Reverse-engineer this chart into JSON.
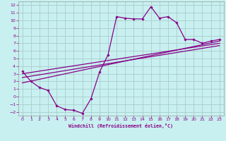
{
  "xlabel": "Windchill (Refroidissement éolien,°C)",
  "bg_color": "#c8f0f0",
  "grid_color": "#aacccc",
  "line_color": "#880088",
  "xlim": [
    -0.5,
    23.5
  ],
  "ylim": [
    -2.5,
    12.5
  ],
  "xticks": [
    0,
    1,
    2,
    3,
    4,
    5,
    6,
    7,
    8,
    9,
    10,
    11,
    12,
    13,
    14,
    15,
    16,
    17,
    18,
    19,
    20,
    21,
    22,
    23
  ],
  "yticks": [
    -2,
    -1,
    0,
    1,
    2,
    3,
    4,
    5,
    6,
    7,
    8,
    9,
    10,
    11,
    12
  ],
  "line1_x": [
    0,
    1,
    2,
    3,
    4,
    5,
    6,
    7,
    8,
    9,
    10,
    11,
    12,
    13,
    14,
    15,
    16,
    17,
    18,
    19,
    20,
    21,
    22,
    23
  ],
  "line1_y": [
    3.3,
    2.0,
    1.2,
    0.8,
    -1.2,
    -1.7,
    -1.8,
    -2.2,
    -0.3,
    3.2,
    5.5,
    10.5,
    10.3,
    10.2,
    10.2,
    11.8,
    10.3,
    10.5,
    9.7,
    7.5,
    7.5,
    7.0,
    7.3,
    7.5
  ],
  "line2_x": [
    0,
    23
  ],
  "line2_y": [
    1.8,
    7.3
  ],
  "line3_x": [
    0,
    23
  ],
  "line3_y": [
    2.5,
    6.7
  ],
  "line4_x": [
    0,
    23
  ],
  "line4_y": [
    3.0,
    7.0
  ]
}
